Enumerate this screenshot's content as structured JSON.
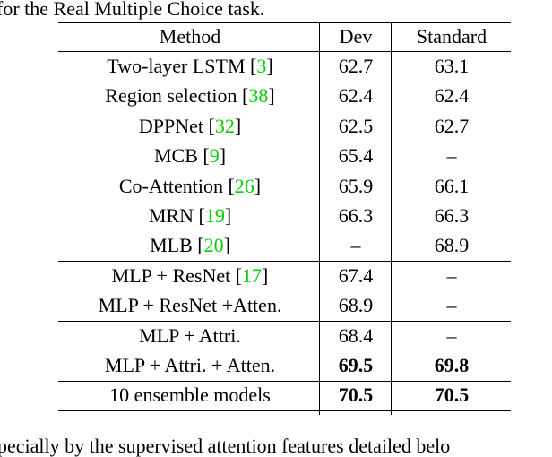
{
  "caption_top": "for the Real Multiple Choice task.",
  "table": {
    "header": [
      "Method",
      "Dev",
      "Standard"
    ],
    "groups": [
      [
        {
          "method": "Two-layer LSTM",
          "cite": "[3]",
          "dev": 62.7,
          "standard": 63.1
        },
        {
          "method": "Region selection",
          "cite": "[38]",
          "dev": 62.4,
          "standard": 62.4
        },
        {
          "method": "DPPNet",
          "cite": "[32]",
          "dev": 62.5,
          "standard": 62.7
        },
        {
          "method": "MCB",
          "cite": "[9]",
          "dev": 65.4,
          "standard": "–"
        },
        {
          "method": "Co-Attention",
          "cite": "[26]",
          "dev": 65.9,
          "standard": 66.1
        },
        {
          "method": "MRN",
          "cite": "[19]",
          "dev": 66.3,
          "standard": 66.3
        },
        {
          "method": "MLB",
          "cite": "[20]",
          "dev": "–",
          "standard": 68.9
        }
      ],
      [
        {
          "method": "MLP + ResNet",
          "cite": "[17]",
          "dev": 67.4,
          "standard": "–"
        },
        {
          "method": "MLP + ResNet +Atten.",
          "dev": 68.9,
          "standard": "–"
        }
      ],
      [
        {
          "method": "MLP + Attri.",
          "dev": 68.4,
          "standard": "–"
        },
        {
          "method": "MLP + Attri. + Atten.",
          "dev": 69.5,
          "standard": 69.8,
          "bold_scores": true
        }
      ],
      [
        {
          "method": "10 ensemble models",
          "dev": 70.5,
          "standard": 70.5,
          "bold_scores": true
        }
      ]
    ]
  },
  "body_bottom": "pecially by the supervised attention features detailed belo"
}
